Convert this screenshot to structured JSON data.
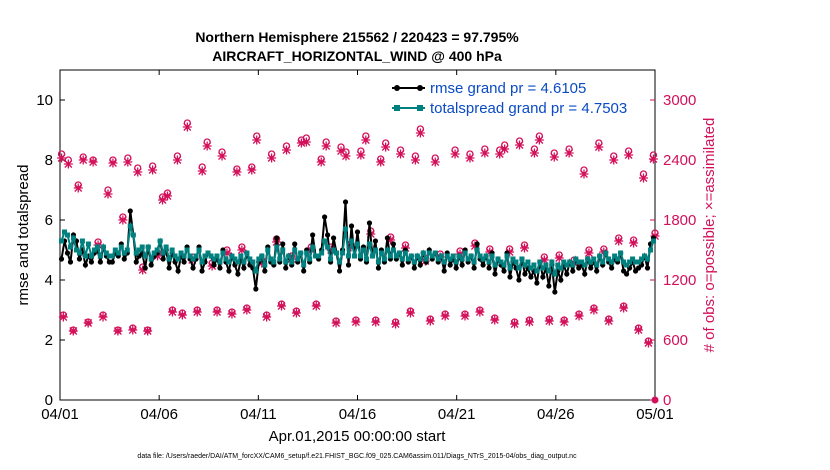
{
  "colors": {
    "rmse": "#000000",
    "spread": "#00807F",
    "obs": "#D3105A",
    "legend_text": "#0A4BC4",
    "axis": "#000000"
  },
  "chart_data": {
    "type": "line",
    "title_line1": "Northern Hemisphere 215562 / 220423 = 97.795%",
    "title_line2": "AIRCRAFT_HORIZONTAL_WIND @ 400 hPa",
    "xlabel": "Apr.01,2015 00:00:00 start",
    "ylabel_left": "rmse and totalspread",
    "ylabel_right": "# of obs: o=possible; ×=assimilated",
    "x_ticks": [
      0,
      5,
      10,
      15,
      20,
      25,
      30
    ],
    "x_tick_labels": [
      "04/01",
      "04/06",
      "04/11",
      "04/16",
      "04/21",
      "04/26",
      "05/01"
    ],
    "xlim": [
      0,
      30
    ],
    "ylim_left": [
      0,
      11
    ],
    "y_ticks_left": [
      0,
      2,
      4,
      6,
      8,
      10
    ],
    "ylim_right": [
      0,
      3300
    ],
    "y_ticks_right": [
      0,
      600,
      1200,
      1800,
      2400,
      3000
    ],
    "legend": [
      {
        "label": "rmse grand pr = 4.6105",
        "series": "rmse"
      },
      {
        "label": "totalspread grand pr = 4.7503",
        "series": "spread"
      }
    ],
    "footer": "data file: /Users/raeder/DAI/ATM_forcXX/CAM6_setup/f.e21.FHIST_BGC.f09_025.CAM6assim.011/Diags_NTrS_2015-04/obs_diag_output.nc",
    "series": [
      {
        "name": "rmse",
        "values": [
          4.7,
          5.3,
          4.9,
          4.6,
          5.5,
          5.3,
          4.7,
          5.0,
          4.5,
          4.8,
          4.6,
          4.9,
          5.0,
          4.6,
          5.1,
          4.8,
          4.6,
          4.6,
          4.9,
          4.8,
          5.2,
          4.7,
          4.9,
          6.3,
          5.5,
          4.6,
          4.8,
          4.9,
          4.4,
          5.1,
          4.5,
          4.8,
          4.9,
          5.3,
          4.7,
          5.0,
          4.4,
          4.9,
          4.6,
          4.3,
          4.8,
          4.6,
          5.1,
          4.7,
          4.4,
          4.7,
          5.1,
          4.3,
          4.6,
          4.9,
          4.8,
          4.5,
          4.7,
          4.4,
          5.0,
          4.6,
          4.3,
          4.8,
          4.5,
          4.2,
          4.7,
          4.4,
          4.9,
          4.5,
          4.4,
          3.7,
          4.6,
          4.8,
          4.3,
          5.1,
          4.6,
          4.5,
          5.4,
          4.6,
          5.2,
          4.4,
          4.8,
          4.5,
          5.2,
          4.6,
          4.9,
          4.3,
          5.0,
          4.6,
          5.5,
          4.8,
          4.7,
          5.0,
          6.1,
          5.5,
          4.6,
          5.4,
          4.9,
          4.3,
          5.0,
          6.6,
          4.5,
          5.8,
          4.8,
          5.6,
          4.7,
          5.1,
          4.6,
          5.9,
          4.8,
          5.3,
          4.4,
          5.0,
          4.6,
          5.4,
          4.7,
          5.2,
          4.7,
          4.9,
          4.5,
          5.0,
          4.6,
          4.8,
          4.4,
          4.8,
          4.5,
          4.9,
          4.6,
          5.0,
          4.7,
          4.9,
          4.6,
          4.8,
          4.3,
          4.9,
          4.5,
          4.7,
          4.4,
          4.8,
          4.5,
          5.0,
          4.6,
          4.8,
          4.4,
          5.2,
          4.7,
          4.5,
          4.8,
          4.4,
          4.9,
          4.2,
          4.7,
          4.5,
          4.3,
          4.9,
          4.1,
          4.6,
          4.4,
          4.0,
          4.7,
          4.2,
          4.4,
          4.1,
          4.3,
          3.9,
          4.6,
          4.1,
          4.4,
          3.8,
          4.5,
          3.6,
          4.3,
          4.0,
          4.5,
          4.2,
          4.6,
          4.3,
          4.7,
          4.4,
          4.5,
          4.2,
          4.7,
          4.4,
          4.6,
          4.3,
          4.8,
          4.5,
          4.9,
          4.6,
          4.4,
          4.7,
          4.6,
          4.9,
          4.3,
          4.2,
          4.4,
          4.6,
          4.3,
          4.4,
          4.5,
          4.8,
          4.4,
          5.2,
          5.4
        ]
      },
      {
        "name": "spread",
        "values": [
          5.3,
          5.6,
          5.5,
          5.1,
          5.4,
          5.0,
          4.9,
          5.3,
          4.8,
          5.2,
          4.8,
          5.0,
          5.1,
          4.8,
          5.1,
          4.9,
          4.8,
          4.8,
          5.0,
          4.9,
          5.1,
          4.9,
          5.0,
          5.8,
          5.5,
          4.9,
          5.0,
          5.1,
          4.8,
          5.1,
          4.7,
          4.9,
          5.0,
          5.3,
          4.9,
          5.1,
          4.7,
          5.0,
          4.8,
          4.7,
          4.9,
          4.8,
          5.0,
          4.8,
          4.7,
          4.8,
          5.0,
          4.6,
          4.8,
          4.9,
          4.8,
          4.7,
          4.8,
          4.6,
          4.9,
          4.7,
          4.6,
          4.8,
          4.7,
          4.6,
          4.8,
          4.6,
          4.9,
          4.7,
          4.6,
          4.3,
          4.7,
          4.8,
          4.5,
          5.0,
          4.7,
          4.6,
          5.1,
          4.7,
          5.0,
          4.6,
          4.8,
          4.6,
          5.0,
          4.7,
          4.9,
          4.5,
          4.9,
          4.7,
          5.1,
          4.8,
          4.8,
          4.9,
          5.3,
          5.1,
          4.7,
          5.0,
          4.9,
          4.6,
          4.9,
          5.7,
          4.8,
          5.3,
          4.8,
          5.2,
          4.8,
          5.0,
          4.7,
          5.2,
          4.8,
          5.0,
          4.6,
          4.9,
          4.7,
          5.0,
          4.8,
          5.0,
          4.8,
          4.9,
          4.7,
          4.9,
          4.7,
          4.8,
          4.6,
          4.8,
          4.7,
          4.9,
          4.7,
          4.9,
          4.8,
          4.9,
          4.7,
          4.8,
          4.6,
          4.8,
          4.7,
          4.8,
          4.6,
          4.8,
          4.7,
          4.9,
          4.7,
          4.8,
          4.6,
          5.0,
          4.8,
          4.7,
          4.8,
          4.6,
          4.8,
          4.5,
          4.7,
          4.6,
          4.5,
          4.8,
          4.4,
          4.7,
          4.6,
          4.4,
          4.7,
          4.5,
          4.6,
          4.4,
          4.5,
          4.3,
          4.6,
          4.4,
          4.5,
          4.3,
          4.6,
          4.2,
          4.5,
          4.4,
          4.6,
          4.5,
          4.6,
          4.5,
          4.7,
          4.6,
          4.6,
          4.5,
          4.7,
          4.6,
          4.7,
          4.5,
          4.8,
          4.6,
          4.9,
          4.7,
          4.6,
          4.8,
          4.7,
          4.9,
          4.6,
          4.5,
          4.6,
          4.7,
          4.6,
          4.6,
          4.7,
          4.8,
          4.7,
          5.0,
          5.3
        ]
      }
    ],
    "obs_possible": [
      [
        0.08,
        2460
      ],
      [
        0.17,
        850
      ],
      [
        0.42,
        2400
      ],
      [
        0.67,
        700
      ],
      [
        0.92,
        2150
      ],
      [
        1.17,
        2430
      ],
      [
        1.42,
        780
      ],
      [
        1.67,
        2400
      ],
      [
        1.92,
        1580
      ],
      [
        2.17,
        850
      ],
      [
        2.42,
        2100
      ],
      [
        2.67,
        2400
      ],
      [
        2.92,
        700
      ],
      [
        3.17,
        1830
      ],
      [
        3.42,
        2420
      ],
      [
        3.67,
        720
      ],
      [
        3.92,
        2320
      ],
      [
        4.17,
        1330
      ],
      [
        4.42,
        700
      ],
      [
        4.67,
        2340
      ],
      [
        4.92,
        1470
      ],
      [
        5.17,
        2030
      ],
      [
        5.42,
        2070
      ],
      [
        5.67,
        900
      ],
      [
        5.92,
        2440
      ],
      [
        6.17,
        870
      ],
      [
        6.42,
        2770
      ],
      [
        6.67,
        1430
      ],
      [
        6.92,
        900
      ],
      [
        7.17,
        2330
      ],
      [
        7.42,
        2580
      ],
      [
        7.67,
        1370
      ],
      [
        7.92,
        900
      ],
      [
        8.17,
        2480
      ],
      [
        8.42,
        1500
      ],
      [
        8.67,
        880
      ],
      [
        8.92,
        2310
      ],
      [
        9.17,
        1530
      ],
      [
        9.42,
        920
      ],
      [
        9.67,
        2330
      ],
      [
        9.92,
        2640
      ],
      [
        10.17,
        1400
      ],
      [
        10.42,
        850
      ],
      [
        10.67,
        2460
      ],
      [
        10.92,
        1610
      ],
      [
        11.17,
        960
      ],
      [
        11.42,
        2540
      ],
      [
        11.67,
        1440
      ],
      [
        11.92,
        890
      ],
      [
        12.17,
        2600
      ],
      [
        12.42,
        2620
      ],
      [
        12.67,
        1530
      ],
      [
        12.92,
        960
      ],
      [
        13.17,
        2410
      ],
      [
        13.42,
        2580
      ],
      [
        13.67,
        1530
      ],
      [
        13.92,
        790
      ],
      [
        14.17,
        2530
      ],
      [
        14.42,
        2480
      ],
      [
        14.67,
        1560
      ],
      [
        14.92,
        800
      ],
      [
        15.17,
        2490
      ],
      [
        15.42,
        2640
      ],
      [
        15.67,
        1690
      ],
      [
        15.92,
        800
      ],
      [
        16.17,
        2410
      ],
      [
        16.42,
        2570
      ],
      [
        16.67,
        1630
      ],
      [
        16.92,
        780
      ],
      [
        17.17,
        2500
      ],
      [
        17.42,
        1550
      ],
      [
        17.67,
        890
      ],
      [
        17.92,
        2440
      ],
      [
        18.17,
        2710
      ],
      [
        18.42,
        1420
      ],
      [
        18.67,
        810
      ],
      [
        18.92,
        2420
      ],
      [
        19.17,
        1460
      ],
      [
        19.42,
        860
      ],
      [
        19.92,
        2500
      ],
      [
        20.17,
        1490
      ],
      [
        20.42,
        860
      ],
      [
        20.67,
        2460
      ],
      [
        20.92,
        1570
      ],
      [
        21.17,
        900
      ],
      [
        21.42,
        2510
      ],
      [
        21.67,
        1510
      ],
      [
        21.92,
        820
      ],
      [
        22.17,
        2500
      ],
      [
        22.42,
        2550
      ],
      [
        22.67,
        1510
      ],
      [
        22.92,
        780
      ],
      [
        23.17,
        2590
      ],
      [
        23.42,
        1550
      ],
      [
        23.67,
        800
      ],
      [
        23.92,
        2510
      ],
      [
        24.17,
        2640
      ],
      [
        24.42,
        1430
      ],
      [
        24.67,
        810
      ],
      [
        24.92,
        2470
      ],
      [
        25.17,
        1450
      ],
      [
        25.42,
        800
      ],
      [
        25.67,
        2510
      ],
      [
        25.92,
        1400
      ],
      [
        26.17,
        860
      ],
      [
        26.42,
        2300
      ],
      [
        26.67,
        1500
      ],
      [
        26.92,
        920
      ],
      [
        27.17,
        2570
      ],
      [
        27.42,
        1510
      ],
      [
        27.67,
        810
      ],
      [
        27.92,
        2440
      ],
      [
        28.17,
        1620
      ],
      [
        28.42,
        940
      ],
      [
        28.67,
        2490
      ],
      [
        28.92,
        1600
      ],
      [
        29.17,
        720
      ],
      [
        29.42,
        2260
      ],
      [
        29.67,
        590
      ],
      [
        29.92,
        2450
      ],
      [
        30.0,
        1670
      ]
    ],
    "obs_assimilated": [
      [
        0.08,
        2420
      ],
      [
        0.17,
        830
      ],
      [
        0.42,
        2360
      ],
      [
        0.67,
        690
      ],
      [
        0.92,
        2120
      ],
      [
        1.17,
        2400
      ],
      [
        1.42,
        770
      ],
      [
        1.67,
        2380
      ],
      [
        1.92,
        1550
      ],
      [
        2.17,
        830
      ],
      [
        2.42,
        2060
      ],
      [
        2.67,
        2370
      ],
      [
        2.92,
        690
      ],
      [
        3.17,
        1800
      ],
      [
        3.42,
        2380
      ],
      [
        3.67,
        700
      ],
      [
        3.92,
        2280
      ],
      [
        4.17,
        1300
      ],
      [
        4.42,
        690
      ],
      [
        4.67,
        2300
      ],
      [
        4.92,
        1440
      ],
      [
        5.17,
        2000
      ],
      [
        5.42,
        2040
      ],
      [
        5.67,
        880
      ],
      [
        5.92,
        2400
      ],
      [
        6.17,
        850
      ],
      [
        6.42,
        2730
      ],
      [
        6.67,
        1400
      ],
      [
        6.92,
        880
      ],
      [
        7.17,
        2290
      ],
      [
        7.42,
        2540
      ],
      [
        7.67,
        1340
      ],
      [
        7.92,
        880
      ],
      [
        8.17,
        2440
      ],
      [
        8.42,
        1470
      ],
      [
        8.67,
        860
      ],
      [
        8.92,
        2280
      ],
      [
        9.17,
        1500
      ],
      [
        9.42,
        900
      ],
      [
        9.67,
        2300
      ],
      [
        9.92,
        2600
      ],
      [
        10.17,
        1370
      ],
      [
        10.42,
        830
      ],
      [
        10.67,
        2420
      ],
      [
        10.92,
        1580
      ],
      [
        11.17,
        940
      ],
      [
        11.42,
        2500
      ],
      [
        11.67,
        1410
      ],
      [
        11.92,
        870
      ],
      [
        12.17,
        2570
      ],
      [
        12.42,
        2580
      ],
      [
        12.67,
        1500
      ],
      [
        12.92,
        940
      ],
      [
        13.17,
        2380
      ],
      [
        13.42,
        2540
      ],
      [
        13.67,
        1500
      ],
      [
        13.92,
        770
      ],
      [
        14.17,
        2490
      ],
      [
        14.42,
        2440
      ],
      [
        14.67,
        1530
      ],
      [
        14.92,
        780
      ],
      [
        15.17,
        2450
      ],
      [
        15.42,
        2600
      ],
      [
        15.67,
        1660
      ],
      [
        15.92,
        780
      ],
      [
        16.17,
        2380
      ],
      [
        16.42,
        2530
      ],
      [
        16.67,
        1600
      ],
      [
        16.92,
        760
      ],
      [
        17.17,
        2460
      ],
      [
        17.42,
        1520
      ],
      [
        17.67,
        870
      ],
      [
        17.92,
        2400
      ],
      [
        18.17,
        2670
      ],
      [
        18.42,
        1390
      ],
      [
        18.67,
        790
      ],
      [
        18.92,
        2380
      ],
      [
        19.17,
        1430
      ],
      [
        19.42,
        840
      ],
      [
        19.92,
        2460
      ],
      [
        20.17,
        1460
      ],
      [
        20.42,
        840
      ],
      [
        20.67,
        2420
      ],
      [
        20.92,
        1540
      ],
      [
        21.17,
        880
      ],
      [
        21.42,
        2470
      ],
      [
        21.67,
        1480
      ],
      [
        21.92,
        800
      ],
      [
        22.17,
        2460
      ],
      [
        22.42,
        2510
      ],
      [
        22.67,
        1480
      ],
      [
        22.92,
        760
      ],
      [
        23.17,
        2550
      ],
      [
        23.42,
        1520
      ],
      [
        23.67,
        780
      ],
      [
        23.92,
        2470
      ],
      [
        24.17,
        2600
      ],
      [
        24.42,
        1400
      ],
      [
        24.67,
        790
      ],
      [
        24.92,
        2430
      ],
      [
        25.17,
        1420
      ],
      [
        25.42,
        780
      ],
      [
        25.67,
        2470
      ],
      [
        25.92,
        1370
      ],
      [
        26.17,
        840
      ],
      [
        26.42,
        2260
      ],
      [
        26.67,
        1470
      ],
      [
        26.92,
        900
      ],
      [
        27.17,
        2530
      ],
      [
        27.42,
        1480
      ],
      [
        27.67,
        790
      ],
      [
        27.92,
        2400
      ],
      [
        28.17,
        1590
      ],
      [
        28.42,
        920
      ],
      [
        28.67,
        2450
      ],
      [
        28.92,
        1570
      ],
      [
        29.17,
        700
      ],
      [
        29.42,
        2220
      ],
      [
        29.67,
        570
      ],
      [
        29.92,
        2410
      ],
      [
        30.0,
        1640
      ]
    ]
  }
}
